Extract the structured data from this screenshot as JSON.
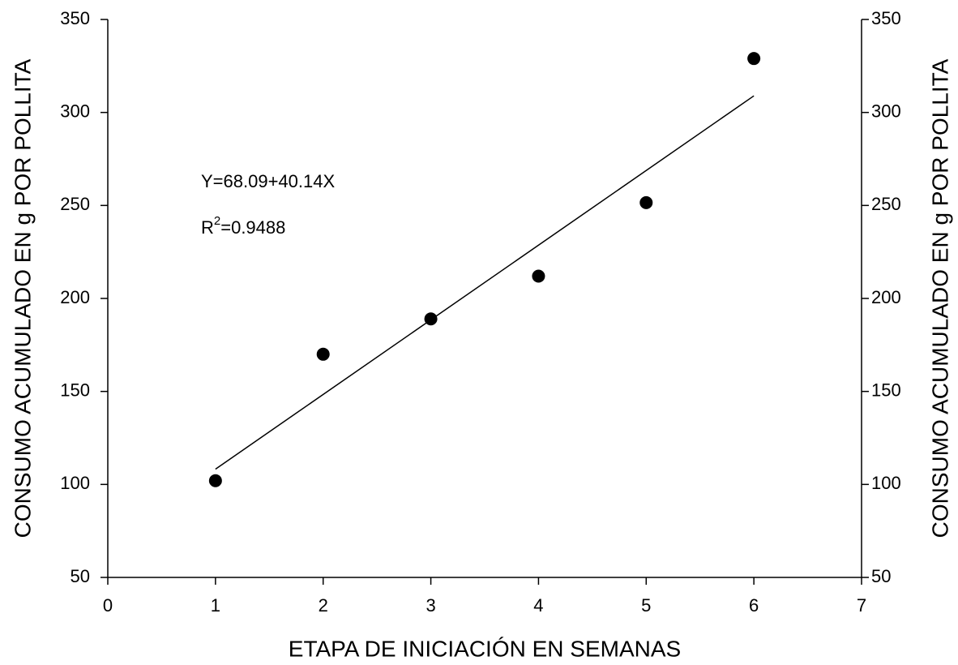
{
  "chart_data": {
    "type": "scatter",
    "xlabel": "ETAPA DE INICIACIÓN EN SEMANAS",
    "ylabel": "CONSUMO ACUMULADO EN g POR POLLITA",
    "y2label": "CONSUMO ACUMULADO EN g POR POLLITA",
    "x": [
      1,
      2,
      3,
      4,
      5,
      6
    ],
    "series": [
      {
        "color": "#000000",
        "values": [
          102,
          170,
          189,
          212,
          251.5,
          329
        ]
      }
    ],
    "fit": {
      "color": "#000000",
      "x": [
        1,
        6
      ],
      "values": [
        108.23,
        308.93
      ]
    },
    "equation": "Y=68.09+40.14X",
    "r2_label": [
      "R",
      "2",
      "=0.9488"
    ],
    "xlim": [
      0,
      7
    ],
    "xticks": [
      0,
      1,
      2,
      3,
      4,
      5,
      6,
      7
    ],
    "ylim": [
      50,
      350
    ],
    "yticks": [
      50,
      100,
      150,
      200,
      250,
      300,
      350
    ],
    "y2lim": [
      50,
      350
    ],
    "y2ticks": [
      50,
      100,
      150,
      200,
      250,
      300,
      350
    ],
    "grid": false
  }
}
